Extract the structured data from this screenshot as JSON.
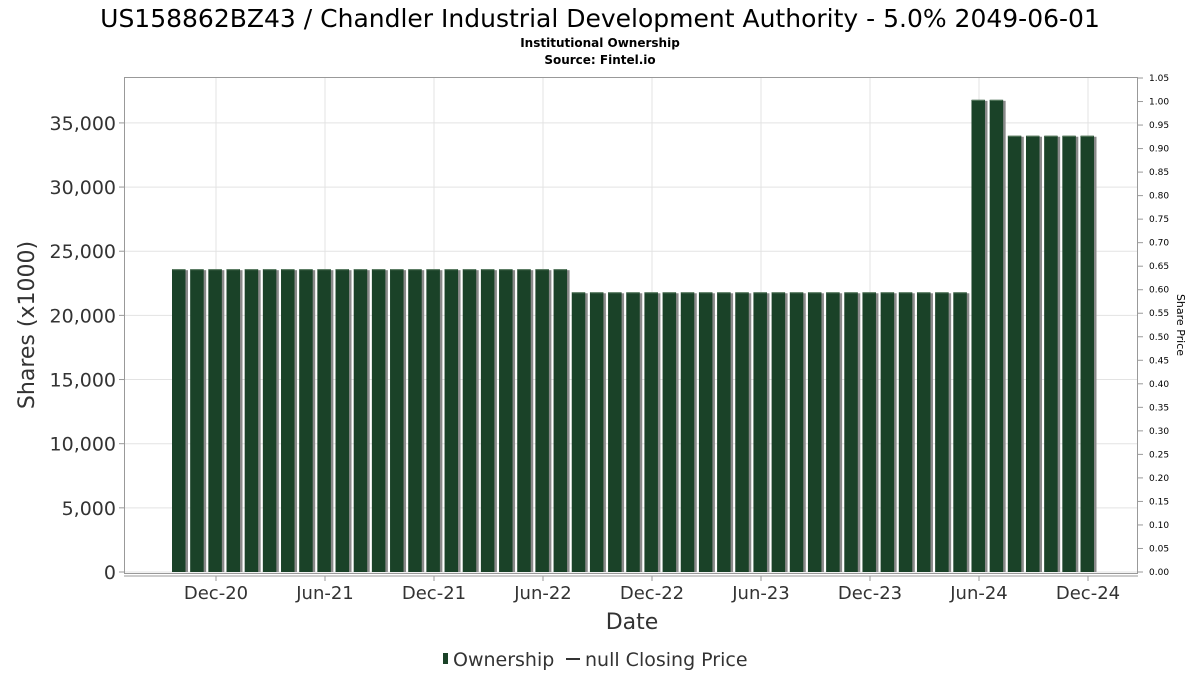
{
  "chart_data": {
    "type": "bar",
    "title": "US158862BZ43 / Chandler Industrial Development Authority - 5.0% 2049-06-01",
    "subtitle_line1": "Institutional Ownership",
    "subtitle_line2": "Source: Fintel.io",
    "xlabel": "Date",
    "ylabel": "Shares (x1000)",
    "y2label": "Share Price",
    "ylim": [
      0,
      38500
    ],
    "y2lim": [
      0,
      1.05
    ],
    "y_ticks": [
      {
        "value": 0,
        "label": "0"
      },
      {
        "value": 5000,
        "label": "5,000"
      },
      {
        "value": 10000,
        "label": "10,000"
      },
      {
        "value": 15000,
        "label": "15,000"
      },
      {
        "value": 20000,
        "label": "20,000"
      },
      {
        "value": 25000,
        "label": "25,000"
      },
      {
        "value": 30000,
        "label": "30,000"
      },
      {
        "value": 35000,
        "label": "35,000"
      }
    ],
    "y2_ticks": [
      "0.00",
      "0.05",
      "0.10",
      "0.15",
      "0.20",
      "0.25",
      "0.30",
      "0.35",
      "0.40",
      "0.45",
      "0.50",
      "0.55",
      "0.60",
      "0.65",
      "0.70",
      "0.75",
      "0.80",
      "0.85",
      "0.90",
      "0.95",
      "1.00",
      "1.05"
    ],
    "x_ticks": [
      "Dec-20",
      "Jun-21",
      "Dec-21",
      "Jun-22",
      "Dec-22",
      "Jun-23",
      "Dec-23",
      "Jun-24",
      "Dec-24"
    ],
    "grid": true,
    "legend_position": "bottom",
    "series": [
      {
        "name": "Ownership",
        "color": "#1a4228",
        "values": [
          23600,
          23600,
          23600,
          23600,
          23600,
          23600,
          23600,
          23600,
          23600,
          23600,
          23600,
          23600,
          23600,
          23600,
          23600,
          23600,
          23600,
          23600,
          23600,
          23600,
          23600,
          23600,
          21800,
          21800,
          21800,
          21800,
          21800,
          21800,
          21800,
          21800,
          21800,
          21800,
          21800,
          21800,
          21800,
          21800,
          21800,
          21800,
          21800,
          21800,
          21800,
          21800,
          21800,
          21800,
          36800,
          36800,
          34000,
          34000,
          34000,
          34000,
          34000
        ]
      }
    ],
    "legend": [
      {
        "label": "Ownership",
        "kind": "bar",
        "color": "#1a4228"
      },
      {
        "label": "null Closing Price",
        "kind": "line",
        "color": "#333333"
      }
    ]
  }
}
